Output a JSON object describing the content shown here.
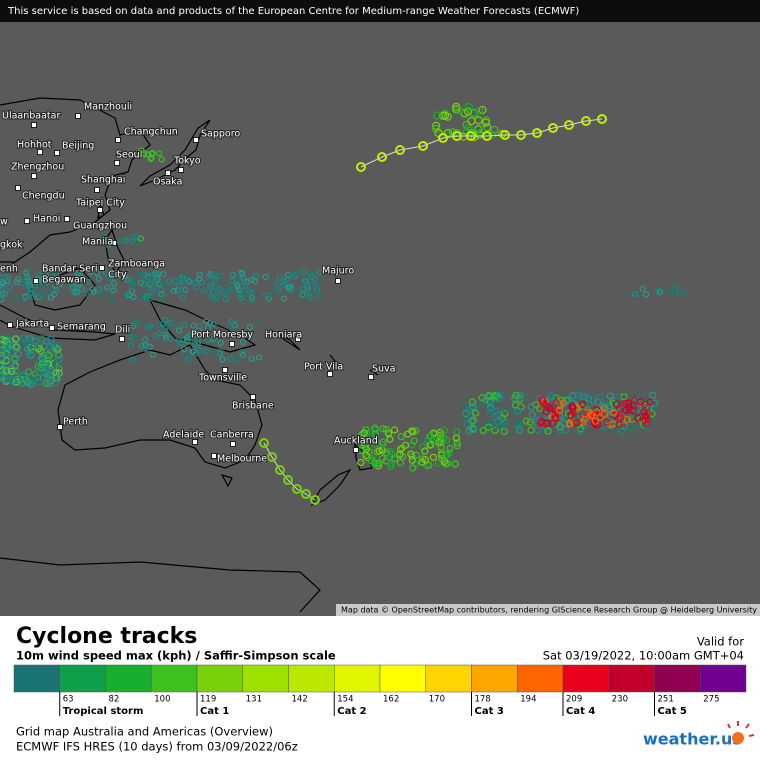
{
  "header": {
    "notice": "This service is based on data and products of the European Centre for Medium-range Weather Forecasts (ECMWF)"
  },
  "map": {
    "cities": [
      {
        "lines": [
          "Ulaanbaatar"
        ]
      },
      {
        "lines": [
          "Manzhouli"
        ]
      },
      {
        "lines": [
          "Hohhot"
        ]
      },
      {
        "lines": [
          "Beijing"
        ]
      },
      {
        "lines": [
          "Changchun"
        ]
      },
      {
        "lines": [
          "Sapporo"
        ]
      },
      {
        "lines": [
          "Zhengzhou"
        ]
      },
      {
        "lines": [
          "Seoul"
        ]
      },
      {
        "lines": [
          "Tokyo"
        ]
      },
      {
        "lines": [
          "Shanghai"
        ]
      },
      {
        "lines": [
          "Osaka"
        ]
      },
      {
        "lines": [
          "Chengdu"
        ]
      },
      {
        "lines": [
          "Taipei City"
        ]
      },
      {
        "lines": [
          "Hanoi"
        ]
      },
      {
        "lines": [
          "Guangzhou"
        ]
      },
      {
        "lines": [
          "w"
        ]
      },
      {
        "lines": [
          "gkok"
        ]
      },
      {
        "lines": [
          "Manila"
        ]
      },
      {
        "lines": [
          "enh"
        ]
      },
      {
        "lines": [
          "Bandar Seri",
          "Begawan"
        ]
      },
      {
        "lines": [
          "Zamboanga",
          "City"
        ]
      },
      {
        "lines": [
          "Majuro"
        ]
      },
      {
        "lines": [
          "Jakarta"
        ]
      },
      {
        "lines": [
          "Semarang"
        ]
      },
      {
        "lines": [
          "Dili"
        ]
      },
      {
        "lines": [
          "Port Moresby"
        ]
      },
      {
        "lines": [
          "Honiara"
        ]
      },
      {
        "lines": [
          "Port Vila"
        ]
      },
      {
        "lines": [
          "Suva"
        ]
      },
      {
        "lines": [
          "Townsville"
        ]
      },
      {
        "lines": [
          "Brisbane"
        ]
      },
      {
        "lines": [
          "Perth"
        ]
      },
      {
        "lines": [
          "Adelaide"
        ]
      },
      {
        "lines": [
          "Canberra"
        ]
      },
      {
        "lines": [
          "Melbourne"
        ]
      },
      {
        "lines": [
          "Auckland"
        ]
      }
    ],
    "attribution": "Map data © OpenStreetMap contributors, rendering GIScience Research Group @ Heidelberg University"
  },
  "legend": {
    "title": "Cyclone tracks",
    "subtitle": "10m wind speed max (kph) / Saffir-Simpson scale",
    "valid_label": "Valid for",
    "valid_time": "Sat 03/19/2022, 10:00am GMT+04",
    "scale": [
      {
        "color": "#1b7272",
        "label": null
      },
      {
        "color": "#0ea04a",
        "label": "63"
      },
      {
        "color": "#17b02e",
        "label": "82"
      },
      {
        "color": "#3cc11f",
        "label": "100"
      },
      {
        "color": "#78d10a",
        "label": "119"
      },
      {
        "color": "#9ee000",
        "label": "131"
      },
      {
        "color": "#bbe800",
        "label": "142"
      },
      {
        "color": "#e0f500",
        "label": "154"
      },
      {
        "color": "#ffff00",
        "label": "162"
      },
      {
        "color": "#ffd400",
        "label": "170"
      },
      {
        "color": "#ffa500",
        "label": "178"
      },
      {
        "color": "#ff6400",
        "label": "194"
      },
      {
        "color": "#e8001e",
        "label": "209"
      },
      {
        "color": "#c0002a",
        "label": "230"
      },
      {
        "color": "#900050",
        "label": "251"
      },
      {
        "color": "#700090",
        "label": "275"
      }
    ],
    "categories": [
      {
        "start": 1,
        "label": "Tropical storm"
      },
      {
        "start": 4,
        "label": "Cat 1"
      },
      {
        "start": 7,
        "label": "Cat 2"
      },
      {
        "start": 10,
        "label": "Cat 3"
      },
      {
        "start": 12,
        "label": "Cat 4"
      },
      {
        "start": 14,
        "label": "Cat 5"
      }
    ]
  },
  "footer": {
    "line1": "Grid map Australia and Americas (Overview)",
    "line2": "ECMWF IFS HRES (10 days) from 03/09/2022/06z",
    "logo": "weather.us"
  }
}
